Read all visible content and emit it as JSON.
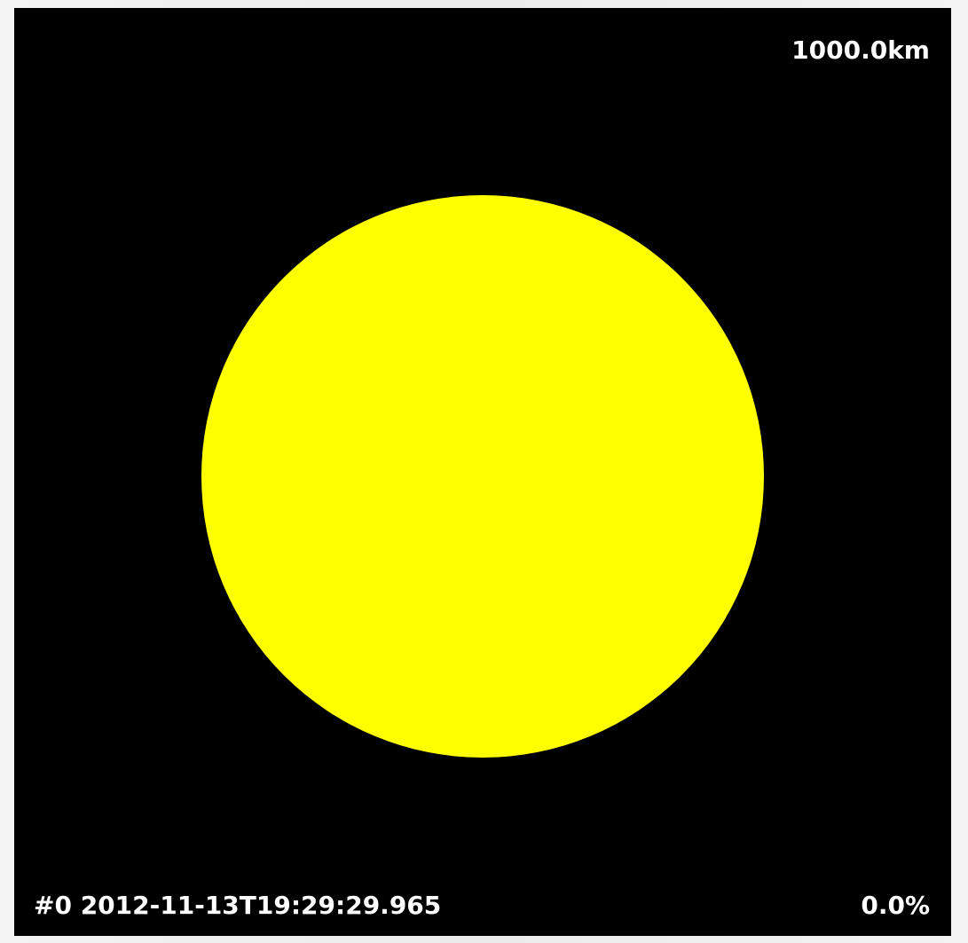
{
  "viewer": {
    "background_color": "#000000",
    "scale_label": "1000.0km",
    "frame_info": "#0 2012-11-13T19:29:29.965",
    "progress": "0.0%"
  },
  "body": {
    "color": "#ffff00"
  }
}
